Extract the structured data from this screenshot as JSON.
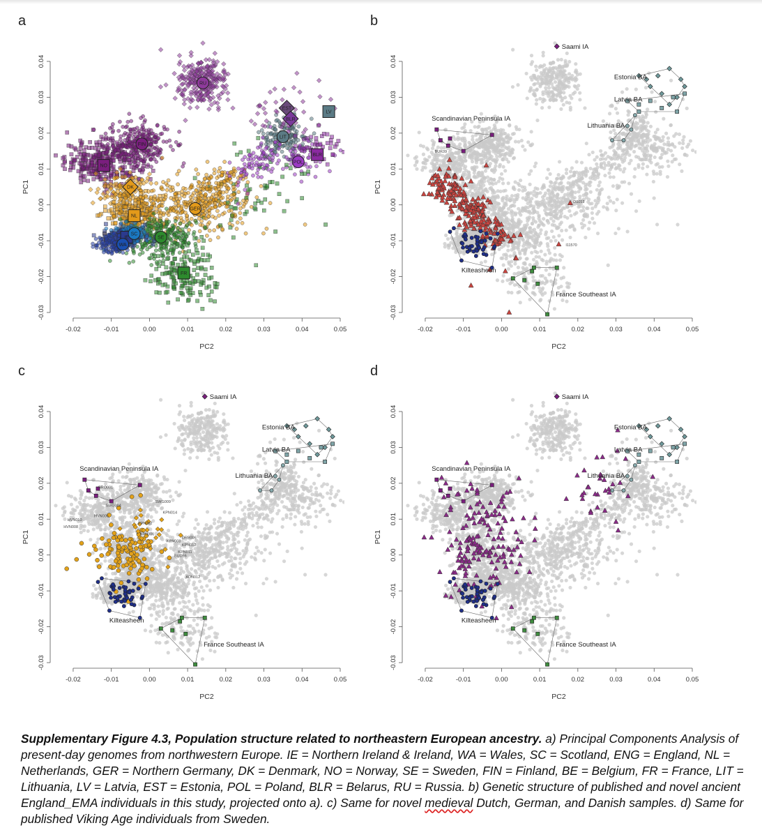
{
  "chart_data": [
    {
      "type": "scatter",
      "panel_letter": "a",
      "xlabel": "PC2",
      "ylabel": "PC1",
      "xlim": [
        -0.022,
        0.05
      ],
      "ylim": [
        -0.03,
        0.04
      ],
      "xticks": [
        "-0.02",
        "-0.01",
        "0.00",
        "0.01",
        "0.02",
        "0.03",
        "0.04",
        "0.05"
      ],
      "yticks": [
        "-0.03",
        "-0.02",
        "-0.01",
        "0.00",
        "0.01",
        "0.02",
        "0.03",
        "0.04"
      ],
      "population_centroids": [
        {
          "label": "RU",
          "x": 0.014,
          "y": 0.034,
          "color": "#8e3a9b",
          "shape": "circle"
        },
        {
          "label": "FIN",
          "x": -0.002,
          "y": 0.017,
          "color": "#7a1e7e",
          "shape": "circle"
        },
        {
          "label": "NO",
          "x": -0.012,
          "y": 0.011,
          "color": "#7a1e7e",
          "shape": "square"
        },
        {
          "label": "DK",
          "x": -0.005,
          "y": 0.005,
          "color": "#e39a1a",
          "shape": "diamond"
        },
        {
          "label": "NL",
          "x": -0.004,
          "y": -0.003,
          "color": "#e39a1a",
          "shape": "square"
        },
        {
          "label": "GER",
          "x": 0.012,
          "y": -0.001,
          "color": "#e39a1a",
          "shape": "circle"
        },
        {
          "label": "IE",
          "x": -0.006,
          "y": -0.009,
          "color": "#2b3a8e",
          "shape": "square"
        },
        {
          "label": "SC",
          "x": -0.004,
          "y": -0.008,
          "color": "#1a78c2",
          "shape": "circle"
        },
        {
          "label": "WA",
          "x": -0.007,
          "y": -0.011,
          "color": "#1a4fb0",
          "shape": "circle"
        },
        {
          "label": "SE",
          "x": 0.003,
          "y": -0.009,
          "color": "#2d8a2d",
          "shape": "circle"
        },
        {
          "label": "FR",
          "x": 0.009,
          "y": -0.019,
          "color": "#2d8a2d",
          "shape": "square"
        },
        {
          "label": "LIT",
          "x": 0.035,
          "y": 0.019,
          "color": "#5b7b85",
          "shape": "circle"
        },
        {
          "label": "EST",
          "x": 0.036,
          "y": 0.027,
          "color": "#6a4a7a",
          "shape": "diamond"
        },
        {
          "label": "BLR",
          "x": 0.037,
          "y": 0.024,
          "color": "#7a3a9a",
          "shape": "diamond"
        },
        {
          "label": "LV",
          "x": 0.047,
          "y": 0.026,
          "color": "#5b7b85",
          "shape": "square"
        },
        {
          "label": "POL",
          "x": 0.039,
          "y": 0.012,
          "color": "#9a3ac2",
          "shape": "circle"
        },
        {
          "label": "BLR",
          "x": 0.044,
          "y": 0.014,
          "color": "#8a2aa0",
          "shape": "square"
        }
      ]
    },
    {
      "type": "scatter",
      "panel_letter": "b",
      "xlabel": "PC2",
      "ylabel": "PC1",
      "xlim": [
        -0.022,
        0.05
      ],
      "ylim": [
        -0.03,
        0.04
      ],
      "xticks": [
        "-0.02",
        "-0.01",
        "0.00",
        "0.01",
        "0.02",
        "0.03",
        "0.04",
        "0.05"
      ],
      "yticks": [
        "-0.03",
        "-0.02",
        "-0.01",
        "0.00",
        "0.01",
        "0.02",
        "0.03",
        "0.04"
      ],
      "legend": [
        {
          "label": "Saami IA",
          "color": "#7a1e7e",
          "shape": "diamond"
        }
      ],
      "group_labels": [
        {
          "label": "Estonia BA",
          "x": 0.0295,
          "y": 0.035
        },
        {
          "label": "Latvia BA",
          "x": 0.0295,
          "y": 0.0288
        },
        {
          "label": "Lithuania BA",
          "x": 0.0225,
          "y": 0.0215
        },
        {
          "label": "Scandinavian Peninsula IA",
          "x": -0.0183,
          "y": 0.0235
        },
        {
          "label": "Kilteasheen",
          "x": -0.0105,
          "y": -0.0188
        },
        {
          "label": "France Southeast IA",
          "x": 0.0142,
          "y": -0.0255
        }
      ],
      "point_labels": [
        {
          "label": "BUK09",
          "x": -0.0175,
          "y": 0.0145
        },
        {
          "label": "D0053",
          "x": 0.0188,
          "y": 0.0005
        },
        {
          "label": "I11570",
          "x": 0.0168,
          "y": -0.0115
        }
      ],
      "highlight_series": "ancient England_EMA"
    },
    {
      "type": "scatter",
      "panel_letter": "c",
      "xlabel": "PC2",
      "ylabel": "PC1",
      "xlim": [
        -0.022,
        0.05
      ],
      "ylim": [
        -0.03,
        0.04
      ],
      "xticks": [
        "-0.02",
        "-0.01",
        "0.00",
        "0.01",
        "0.02",
        "0.03",
        "0.04",
        "0.05"
      ],
      "yticks": [
        "-0.03",
        "-0.02",
        "-0.01",
        "0.00",
        "0.01",
        "0.02",
        "0.03",
        "0.04"
      ],
      "legend": [
        {
          "label": "Saami IA",
          "color": "#7a1e7e",
          "shape": "diamond"
        }
      ],
      "group_labels": [
        {
          "label": "Estonia BA",
          "x": 0.0295,
          "y": 0.035
        },
        {
          "label": "Latvia BA",
          "x": 0.0295,
          "y": 0.0288
        },
        {
          "label": "Lithuania BA",
          "x": 0.0225,
          "y": 0.0215
        },
        {
          "label": "Scandinavian Peninsula IA",
          "x": -0.0183,
          "y": 0.0235
        },
        {
          "label": "Kilteasheen",
          "x": -0.0105,
          "y": -0.0188
        },
        {
          "label": "France Southeast IA",
          "x": 0.0142,
          "y": -0.0255
        }
      ],
      "point_labels": [
        {
          "label": "GRO001",
          "x": -0.0135,
          "y": 0.0185
        },
        {
          "label": "SWG004",
          "x": -0.0115,
          "y": 0.0135
        },
        {
          "label": "SWG009",
          "x": 0.0015,
          "y": 0.0145
        },
        {
          "label": "HVN005",
          "x": -0.0145,
          "y": 0.0105
        },
        {
          "label": "HVN010",
          "x": -0.0215,
          "y": 0.0095
        },
        {
          "label": "HVN008",
          "x": -0.0225,
          "y": 0.0075
        },
        {
          "label": "KPN014",
          "x": 0.0035,
          "y": 0.0115
        },
        {
          "label": "KPN002",
          "x": -0.003,
          "y": 0.0085
        },
        {
          "label": "KPN006",
          "x": -0.0025,
          "y": 0.0055
        },
        {
          "label": "DRB006",
          "x": 0.0085,
          "y": 0.0045
        },
        {
          "label": "KPN008",
          "x": 0.0045,
          "y": 0.0035
        },
        {
          "label": "KPN012",
          "x": 0.0085,
          "y": 0.0025
        },
        {
          "label": "KPN011",
          "x": 0.0075,
          "y": 0.0005
        },
        {
          "label": "BUD56",
          "x": 0.0065,
          "y": -0.0005
        },
        {
          "label": "ADN012",
          "x": 0.0095,
          "y": -0.0065
        }
      ],
      "highlight_series": "novel medieval Dutch, German, and Danish samples"
    },
    {
      "type": "scatter",
      "panel_letter": "d",
      "xlabel": "PC2",
      "ylabel": "PC1",
      "xlim": [
        -0.022,
        0.05
      ],
      "ylim": [
        -0.03,
        0.04
      ],
      "xticks": [
        "-0.02",
        "-0.01",
        "0.00",
        "0.01",
        "0.02",
        "0.03",
        "0.04",
        "0.05"
      ],
      "yticks": [
        "-0.03",
        "-0.02",
        "-0.01",
        "0.00",
        "0.01",
        "0.02",
        "0.03",
        "0.04"
      ],
      "legend": [
        {
          "label": "Saami IA",
          "color": "#7a1e7e",
          "shape": "diamond"
        }
      ],
      "group_labels": [
        {
          "label": "Estonia BA",
          "x": 0.0295,
          "y": 0.035
        },
        {
          "label": "Latvia BA",
          "x": 0.0295,
          "y": 0.0288
        },
        {
          "label": "Lithuania BA",
          "x": 0.0225,
          "y": 0.0215
        },
        {
          "label": "Scandinavian Peninsula IA",
          "x": -0.0183,
          "y": 0.0235
        },
        {
          "label": "Kilteasheen",
          "x": -0.0105,
          "y": -0.0188
        },
        {
          "label": "France Southeast IA",
          "x": 0.0142,
          "y": -0.0255
        }
      ],
      "highlight_series": "published Viking Age individuals from Sweden"
    }
  ],
  "caption": {
    "title": "Supplementary Figure 4.3, Population structure related to northeastern European ancestry.",
    "segments": [
      "a) Principal Components Analysis of present-day genomes from northwestern Europe. IE = Northern Ireland & Ireland, WA = Wales, SC = Scotland, ENG = England, NL = Netherlands, GER = Northern Germany, DK = Denmark, NO = Norway, SE = Sweden, FIN = Finland, BE = Belgium, FR = France, LIT = Lithuania, LV = Latvia, EST = Estonia, POL = Poland, BLR = Belarus, RU = Russia. b) Genetic structure of published and novel ancient England_EMA individuals in this study, projected onto a). c) Same for novel ",
      "medieval",
      " Dutch, German, and Danish samples. d) Same for published Viking Age individuals from Sweden."
    ]
  }
}
